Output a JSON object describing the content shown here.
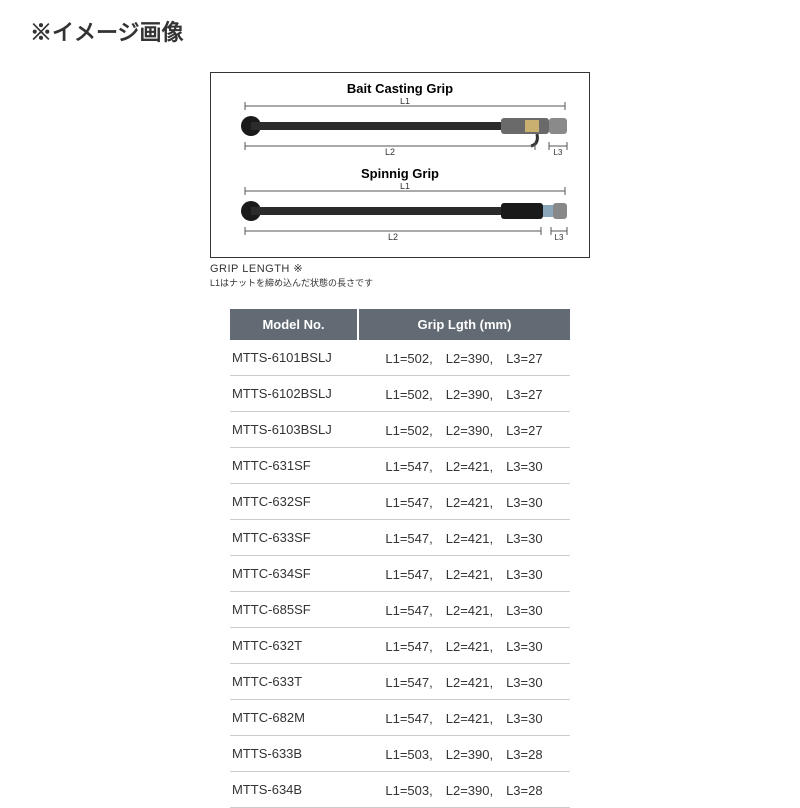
{
  "heading": "※イメージ画像",
  "diagram": {
    "bait_title": "Bait Casting Grip",
    "spin_title": "Spinnig Grip",
    "labels": {
      "L1": "L1",
      "L2": "L2",
      "L3": "L3"
    },
    "footnote1": "GRIP LENGTH ※",
    "footnote2": "L1はナットを締め込んだ状態の長さです"
  },
  "table": {
    "headers": {
      "model": "Model No.",
      "grip": "Grip Lgth (mm)"
    },
    "rows": [
      {
        "model": "MTTS-6101BSLJ",
        "grip": "L1=502,　L2=390,　L3=27"
      },
      {
        "model": "MTTS-6102BSLJ",
        "grip": "L1=502,　L2=390,　L3=27"
      },
      {
        "model": "MTTS-6103BSLJ",
        "grip": "L1=502,　L2=390,　L3=27"
      },
      {
        "model": "MTTC-631SF",
        "grip": "L1=547,　L2=421,　L3=30"
      },
      {
        "model": "MTTC-632SF",
        "grip": "L1=547,　L2=421,　L3=30"
      },
      {
        "model": "MTTC-633SF",
        "grip": "L1=547,　L2=421,　L3=30"
      },
      {
        "model": "MTTC-634SF",
        "grip": "L1=547,　L2=421,　L3=30"
      },
      {
        "model": "MTTC-685SF",
        "grip": "L1=547,　L2=421,　L3=30"
      },
      {
        "model": "MTTC-632T",
        "grip": "L1=547,　L2=421,　L3=30"
      },
      {
        "model": "MTTC-633T",
        "grip": "L1=547,　L2=421,　L3=30"
      },
      {
        "model": "MTTC-682M",
        "grip": "L1=547,　L2=421,　L3=30"
      },
      {
        "model": "MTTS-633B",
        "grip": "L1=503,　L2=390,　L3=28"
      },
      {
        "model": "MTTS-634B",
        "grip": "L1=503,　L2=390,　L3=28"
      }
    ]
  }
}
